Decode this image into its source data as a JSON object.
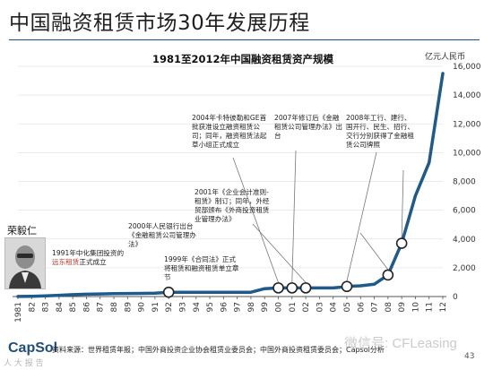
{
  "title": "中国融资租赁市场30年发展历程",
  "source": "资料来源：世界租赁年报；中国外商投资企业协会租赁业委员会；中国外商投资租赁委员会；Capsol分析",
  "page_number": "43",
  "logo": "CapSol",
  "watermark": "微信号: CFLeasing",
  "watermark_left": "人 大 报 告",
  "person_name": "荣毅仁",
  "annotations": {
    "a1991": {
      "pre": "1991年中化集团投资的",
      "hl": "远东租赁",
      "post": "正式成立"
    },
    "a1999": "1999年《合同法》正式将租赁和融资租赁单立章节",
    "a2000": "2000年人民银行出台《金融租赁公司管理办法》",
    "a2001": "2001年《企业会计准则-租赁》制订；同年，外经贸部颁布《外商投资租赁业管理办法》",
    "a2004": "2004年卡特彼勒和GE首批获准设立融资租赁公司；同年，融资租赁法起草小组正式成立",
    "a2007": "2007年修订后《金融租赁公司管理办法》出台",
    "a2008": "2008年工行、建行、国开行、民生、招行、交行分别获得了金融租赁公司牌照"
  },
  "chart_data": {
    "type": "line",
    "title": "1981至2012年中国融资租赁资产规模",
    "unit": "亿元人民币",
    "x": [
      "1981",
      "82",
      "83",
      "84",
      "85",
      "86",
      "87",
      "88",
      "89",
      "90",
      "91",
      "92",
      "93",
      "94",
      "95",
      "96",
      "97",
      "98",
      "99",
      "00",
      "01",
      "02",
      "03",
      "04",
      "05",
      "06",
      "07",
      "08",
      "09",
      "10",
      "11",
      "12"
    ],
    "values": [
      5,
      20,
      50,
      90,
      130,
      160,
      180,
      200,
      210,
      220,
      230,
      300,
      300,
      300,
      300,
      300,
      300,
      300,
      550,
      600,
      600,
      600,
      600,
      600,
      700,
      750,
      850,
      1500,
      3700,
      7000,
      9300,
      15500
    ],
    "ylim": [
      0,
      16000
    ],
    "yticks": [
      0,
      2000,
      4000,
      6000,
      8000,
      10000,
      12000,
      14000,
      16000
    ],
    "ytick_labels": [
      "0",
      "2,000",
      "4,000",
      "6,000",
      "8,000",
      "10,000",
      "12,000",
      "14,000",
      "16,000"
    ],
    "markers": [
      "92",
      "00",
      "01",
      "02",
      "05",
      "08",
      "09"
    ],
    "line_color": "#1e5a8a",
    "grid": true
  }
}
